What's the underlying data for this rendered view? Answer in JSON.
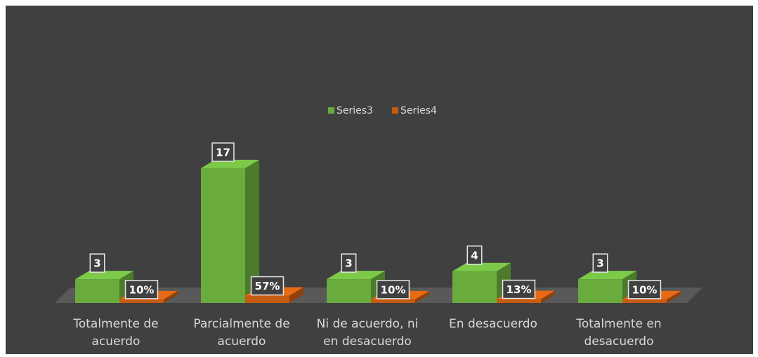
{
  "chart_data": {
    "type": "bar3d",
    "categories": [
      "Totalmente de acuerdo",
      "Parcialmente de acuerdo",
      "Ni de acuerdo, ni en desacuerdo",
      "En desacuerdo",
      "Totalmente en desacuerdo"
    ],
    "series": [
      {
        "name": "Series3",
        "color": "#6aab3e",
        "values": [
          3,
          17,
          3,
          4,
          3
        ]
      },
      {
        "name": "Series4",
        "color": "#c55a11",
        "values": [
          0.1,
          0.57,
          0.1,
          0.13,
          0.1
        ],
        "value_labels": [
          "10%",
          "57%",
          "10%",
          "13%",
          "10%"
        ]
      }
    ],
    "ylim": [
      0,
      20
    ],
    "legend": "top"
  }
}
